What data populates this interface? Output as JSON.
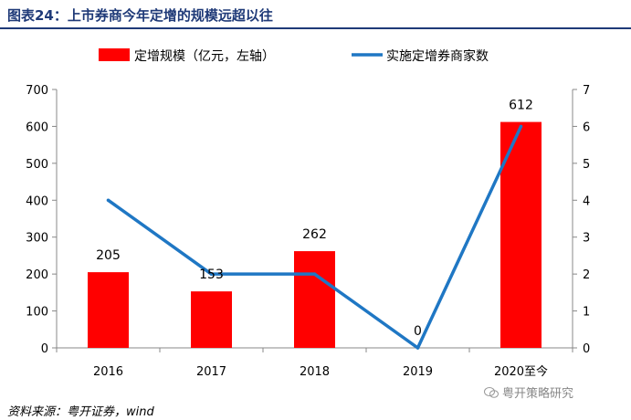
{
  "header": {
    "title": "图表24：上市券商今年定增的规模远超以往"
  },
  "footer": {
    "source": "资料来源：粤开证券，wind",
    "watermark": "粤开策略研究"
  },
  "chart_data": {
    "type": "bar",
    "categories": [
      "2016",
      "2017",
      "2018",
      "2019",
      "2020至今"
    ],
    "series": [
      {
        "name": "定增规模（亿元，左轴）",
        "type": "bar",
        "axis": "left",
        "color": "#ff0000",
        "values": [
          205,
          153,
          262,
          0,
          612
        ],
        "labels": [
          "205",
          "153",
          "262",
          "0",
          "612"
        ]
      },
      {
        "name": "实施定增券商家数",
        "type": "line",
        "axis": "right",
        "color": "#1f77c4",
        "values": [
          4,
          2,
          2,
          0,
          6
        ]
      }
    ],
    "ylim_left": [
      0,
      700
    ],
    "yticks_left": [
      0,
      100,
      200,
      300,
      400,
      500,
      600,
      700
    ],
    "ylim_right": [
      0,
      7
    ],
    "yticks_right": [
      0,
      1,
      2,
      3,
      4,
      5,
      6,
      7
    ],
    "legend_position": "top-center",
    "grid": false
  }
}
